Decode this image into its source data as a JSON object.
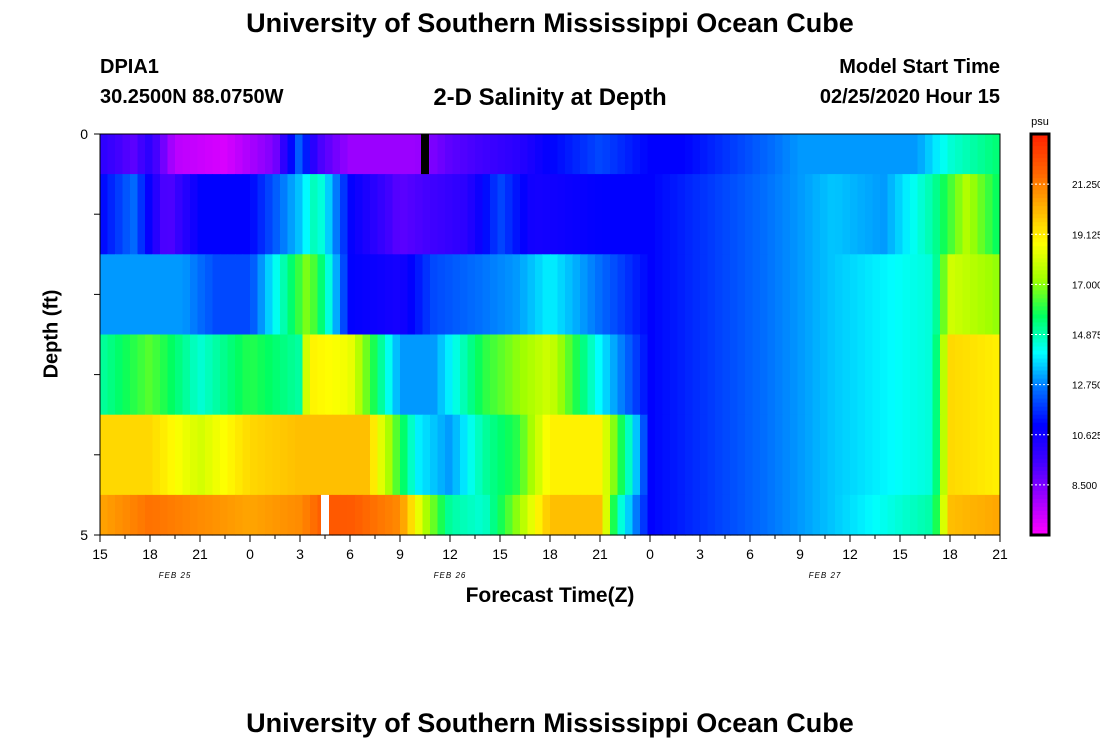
{
  "header": {
    "title": "University of Southern Mississippi Ocean Cube",
    "station": "DPIA1",
    "coords": "30.2500N 88.0750W",
    "chart_title": "2-D Salinity at Depth",
    "model_start_label": "Model Start Time",
    "model_start_value": "02/25/2020 Hour 15"
  },
  "footer": {
    "title": "University of Southern Mississippi Ocean Cube"
  },
  "chart_data": {
    "type": "heatmap",
    "title": "2-D Salinity at Depth",
    "xlabel": "Forecast Time(Z)",
    "ylabel": "Depth (ft)",
    "x_ticks": [
      "15",
      "18",
      "21",
      "0",
      "3",
      "6",
      "9",
      "12",
      "15",
      "18",
      "21",
      "0",
      "3",
      "6",
      "9",
      "12",
      "15",
      "18",
      "21"
    ],
    "date_labels": [
      {
        "text": "FEB 25",
        "tick_index": 1.5
      },
      {
        "text": "FEB 26",
        "tick_index": 7
      },
      {
        "text": "FEB 27",
        "tick_index": 14.5
      }
    ],
    "y_ticks": [
      "0",
      "5"
    ],
    "ylim": [
      0,
      5
    ],
    "xlim_hours": [
      0,
      54
    ],
    "colorbar": {
      "unit": "psu",
      "min": 6.375,
      "max": 23.375,
      "ticks": [
        "21.250",
        "19.125",
        "17.000",
        "14.875",
        "12.750",
        "10.625",
        "8.500"
      ],
      "colors": [
        "#ff00ff",
        "#a000ff",
        "#4000ff",
        "#0000ff",
        "#0070ff",
        "#00ffff",
        "#00ff60",
        "#a0ff00",
        "#ffff00",
        "#ffb000",
        "#ff6000",
        "#ff2000"
      ]
    },
    "layer_depths_ft": [
      0.25,
      1.0,
      2.0,
      3.0,
      4.0,
      4.75
    ],
    "markers": [
      {
        "hour": 19.5,
        "layer": 0,
        "color": "#000000"
      },
      {
        "hour": 13.5,
        "layer": 5,
        "color": "#ffffff"
      }
    ],
    "salinity_psu": [
      [
        [
          0,
          10.0
        ],
        [
          2,
          9.0
        ],
        [
          3,
          10.0
        ],
        [
          4.5,
          7.5
        ],
        [
          7.5,
          7.0
        ],
        [
          10.5,
          8.5
        ],
        [
          12,
          12.5
        ],
        [
          13,
          9.5
        ],
        [
          15,
          8.0
        ],
        [
          19,
          8.0
        ],
        [
          21,
          9.0
        ],
        [
          25,
          10.0
        ],
        [
          27,
          11.0
        ],
        [
          30,
          12.0
        ],
        [
          33,
          11.0
        ],
        [
          35,
          11.0
        ],
        [
          42,
          13.0
        ],
        [
          45,
          13.0
        ],
        [
          49,
          13.0
        ],
        [
          51,
          14.5
        ],
        [
          54,
          15.5
        ]
      ],
      [
        [
          0,
          11.0
        ],
        [
          2,
          12.5
        ],
        [
          4,
          9.0
        ],
        [
          6,
          11.0
        ],
        [
          9,
          11.0
        ],
        [
          12,
          13.5
        ],
        [
          13,
          15.0
        ],
        [
          15,
          11.0
        ],
        [
          18,
          9.0
        ],
        [
          22,
          10.0
        ],
        [
          24,
          12.0
        ],
        [
          26,
          10.5
        ],
        [
          30,
          11.0
        ],
        [
          33,
          11.0
        ],
        [
          42,
          13.0
        ],
        [
          44,
          13.5
        ],
        [
          47,
          13.0
        ],
        [
          50,
          15.0
        ],
        [
          52,
          17.5
        ],
        [
          54,
          15.5
        ]
      ],
      [
        [
          0,
          13.0
        ],
        [
          3,
          13.0
        ],
        [
          5,
          13.0
        ],
        [
          7,
          12.0
        ],
        [
          9,
          12.0
        ],
        [
          12.5,
          17.0
        ],
        [
          13.5,
          15.0
        ],
        [
          15,
          11.0
        ],
        [
          18,
          10.5
        ],
        [
          20,
          12.0
        ],
        [
          25,
          13.0
        ],
        [
          27,
          14.0
        ],
        [
          30,
          12.5
        ],
        [
          33,
          11.0
        ],
        [
          42,
          13.0
        ],
        [
          44,
          13.5
        ],
        [
          50,
          14.5
        ],
        [
          51,
          18.0
        ],
        [
          54,
          17.0
        ]
      ],
      [
        [
          0,
          15.0
        ],
        [
          3,
          16.5
        ],
        [
          6,
          14.5
        ],
        [
          9,
          16.0
        ],
        [
          12,
          15.0
        ],
        [
          12.5,
          19.0
        ],
        [
          15,
          18.5
        ],
        [
          18,
          13.0
        ],
        [
          20,
          13.0
        ],
        [
          23,
          16.0
        ],
        [
          27,
          18.0
        ],
        [
          30,
          14.0
        ],
        [
          33,
          11.0
        ],
        [
          42,
          13.0
        ],
        [
          44,
          13.5
        ],
        [
          50,
          14.5
        ],
        [
          51,
          19.5
        ],
        [
          54,
          19.0
        ]
      ],
      [
        [
          0,
          19.5
        ],
        [
          3,
          19.5
        ],
        [
          6,
          18.0
        ],
        [
          9,
          19.5
        ],
        [
          12,
          20.0
        ],
        [
          16,
          20.0
        ],
        [
          17.5,
          17.0
        ],
        [
          19,
          14.0
        ],
        [
          21,
          13.0
        ],
        [
          23,
          15.0
        ],
        [
          25,
          16.0
        ],
        [
          27,
          19.0
        ],
        [
          30,
          19.0
        ],
        [
          32,
          14.0
        ],
        [
          33,
          11.0
        ],
        [
          42,
          13.0
        ],
        [
          44,
          13.5
        ],
        [
          50,
          14.5
        ],
        [
          51,
          19.5
        ],
        [
          54,
          19.0
        ]
      ],
      [
        [
          0,
          20.5
        ],
        [
          3,
          21.5
        ],
        [
          6,
          21.0
        ],
        [
          9,
          20.5
        ],
        [
          12,
          21.0
        ],
        [
          13.5,
          22.0
        ],
        [
          15,
          22.0
        ],
        [
          18,
          21.0
        ],
        [
          19.5,
          17.5
        ],
        [
          21,
          15.0
        ],
        [
          23,
          14.5
        ],
        [
          25,
          17.0
        ],
        [
          27,
          20.0
        ],
        [
          30,
          20.0
        ],
        [
          31,
          15.0
        ],
        [
          33,
          11.0
        ],
        [
          42,
          13.0
        ],
        [
          44,
          13.5
        ],
        [
          50,
          15.0
        ],
        [
          51,
          20.0
        ],
        [
          54,
          20.5
        ]
      ]
    ]
  }
}
